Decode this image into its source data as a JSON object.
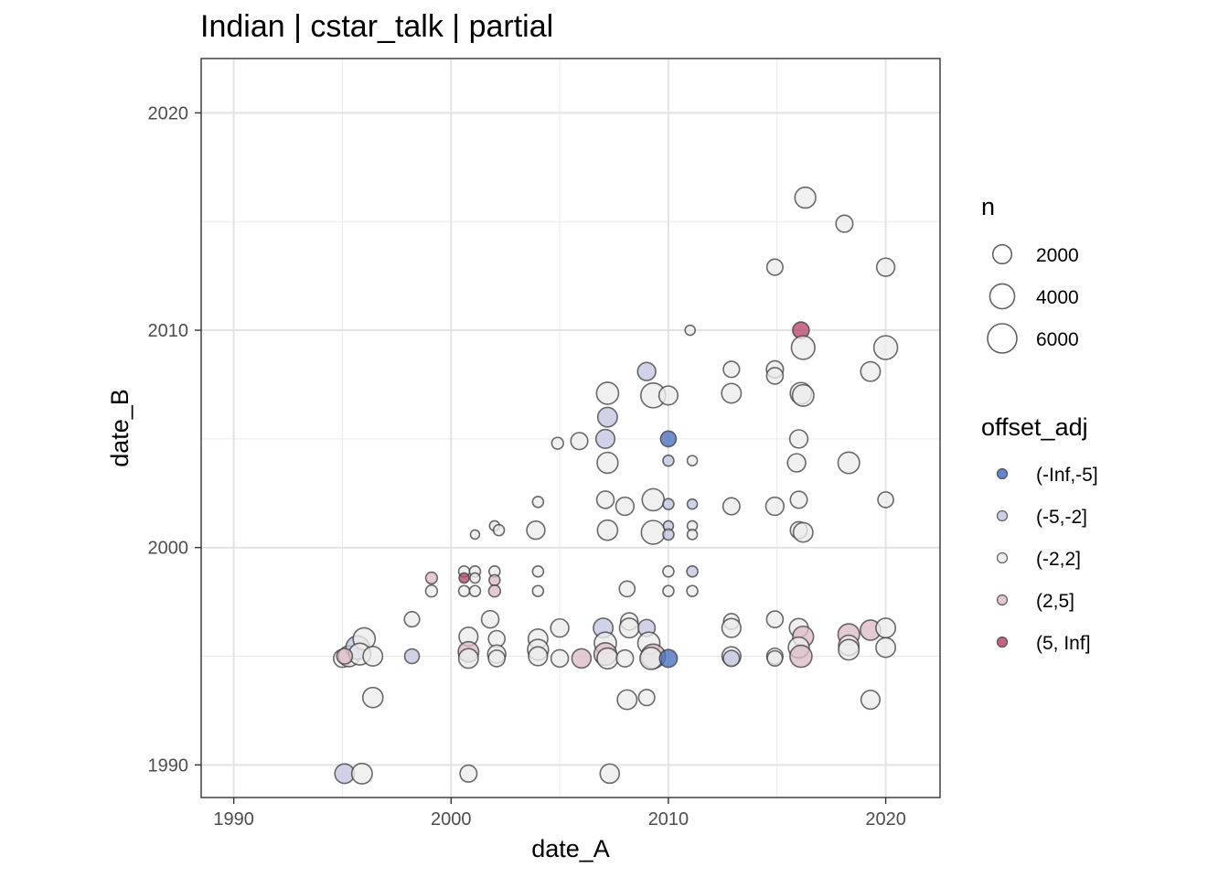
{
  "chart_data": {
    "type": "scatter",
    "title": "Indian | cstar_talk | partial",
    "xlabel": "date_A",
    "ylabel": "date_B",
    "xlim": [
      1988.5,
      2022.5
    ],
    "ylim": [
      1988.5,
      2022.5
    ],
    "x_ticks": [
      "1990",
      "2000",
      "2010",
      "2020"
    ],
    "y_ticks": [
      "1990",
      "2000",
      "2010",
      "2020"
    ],
    "grid": true,
    "size_legend": {
      "title": "n",
      "entries": [
        {
          "label": "2000",
          "value": 2000
        },
        {
          "label": "4000",
          "value": 4000
        },
        {
          "label": "6000",
          "value": 6000
        }
      ]
    },
    "color_legend": {
      "title": "offset_adj",
      "position": "right",
      "entries": [
        {
          "label": "(-Inf,-5]",
          "key": "neg_inf",
          "color": "#4a6fbf"
        },
        {
          "label": "(-5,-2]",
          "key": "neg",
          "color": "#c3c6e2"
        },
        {
          "label": "(-2,2]",
          "key": "zero",
          "color": "#ececec"
        },
        {
          "label": "(2,5]",
          "key": "pos",
          "color": "#ddbdc6"
        },
        {
          "label": "(5, Inf]",
          "key": "pos_inf",
          "color": "#b9476e"
        }
      ]
    },
    "points": [
      {
        "x": 1995.1,
        "y": 1989.6,
        "n": 2200,
        "g": "neg"
      },
      {
        "x": 1995.9,
        "y": 1989.6,
        "n": 2500,
        "g": "zero"
      },
      {
        "x": 1996.4,
        "y": 1993.1,
        "n": 2400,
        "g": "zero"
      },
      {
        "x": 1995.0,
        "y": 1994.9,
        "n": 1700,
        "g": "zero"
      },
      {
        "x": 1995.3,
        "y": 1995.0,
        "n": 2600,
        "g": "zero"
      },
      {
        "x": 1995.7,
        "y": 1995.4,
        "n": 3500,
        "g": "neg"
      },
      {
        "x": 1996.0,
        "y": 1995.8,
        "n": 3000,
        "g": "zero"
      },
      {
        "x": 1995.8,
        "y": 1995.1,
        "n": 2900,
        "g": "zero"
      },
      {
        "x": 1996.4,
        "y": 1995.0,
        "n": 2200,
        "g": "zero"
      },
      {
        "x": 1995.1,
        "y": 1995.0,
        "n": 1200,
        "g": "pos"
      },
      {
        "x": 1998.2,
        "y": 1996.7,
        "n": 1100,
        "g": "zero"
      },
      {
        "x": 1998.2,
        "y": 1995.0,
        "n": 1000,
        "g": "neg"
      },
      {
        "x": 1999.1,
        "y": 1998.0,
        "n": 500,
        "g": "zero"
      },
      {
        "x": 1999.1,
        "y": 1998.6,
        "n": 500,
        "g": "pos"
      },
      {
        "x": 2000.6,
        "y": 1998.9,
        "n": 400,
        "g": "zero"
      },
      {
        "x": 2000.6,
        "y": 1998.6,
        "n": 300,
        "g": "pos_inf"
      },
      {
        "x": 2000.6,
        "y": 1998.0,
        "n": 400,
        "g": "zero"
      },
      {
        "x": 2001.1,
        "y": 1998.9,
        "n": 400,
        "g": "zero"
      },
      {
        "x": 2001.1,
        "y": 1998.6,
        "n": 300,
        "g": "zero"
      },
      {
        "x": 2001.1,
        "y": 1998.0,
        "n": 400,
        "g": "zero"
      },
      {
        "x": 2001.1,
        "y": 2000.6,
        "n": 200,
        "g": "zero"
      },
      {
        "x": 2000.8,
        "y": 1989.6,
        "n": 1500,
        "g": "zero"
      },
      {
        "x": 2000.8,
        "y": 1995.9,
        "n": 2000,
        "g": "zero"
      },
      {
        "x": 2000.8,
        "y": 1995.2,
        "n": 2500,
        "g": "pos"
      },
      {
        "x": 2000.8,
        "y": 1994.9,
        "n": 2200,
        "g": "zero"
      },
      {
        "x": 2002.0,
        "y": 2001.0,
        "n": 300,
        "g": "zero"
      },
      {
        "x": 2002.2,
        "y": 2000.8,
        "n": 400,
        "g": "zero"
      },
      {
        "x": 2002.0,
        "y": 1998.9,
        "n": 400,
        "g": "zero"
      },
      {
        "x": 2002.0,
        "y": 1998.5,
        "n": 400,
        "g": "pos"
      },
      {
        "x": 2002.0,
        "y": 1998.0,
        "n": 500,
        "g": "pos"
      },
      {
        "x": 2001.8,
        "y": 1996.7,
        "n": 1600,
        "g": "zero"
      },
      {
        "x": 2002.1,
        "y": 1995.8,
        "n": 1400,
        "g": "zero"
      },
      {
        "x": 2002.1,
        "y": 1995.1,
        "n": 1800,
        "g": "zero"
      },
      {
        "x": 2002.1,
        "y": 1994.9,
        "n": 1400,
        "g": "zero"
      },
      {
        "x": 2003.9,
        "y": 2000.8,
        "n": 1800,
        "g": "zero"
      },
      {
        "x": 2004.0,
        "y": 2002.1,
        "n": 400,
        "g": "zero"
      },
      {
        "x": 2004.0,
        "y": 1998.9,
        "n": 400,
        "g": "zero"
      },
      {
        "x": 2004.0,
        "y": 1998.0,
        "n": 400,
        "g": "zero"
      },
      {
        "x": 2004.0,
        "y": 1995.8,
        "n": 2200,
        "g": "zero"
      },
      {
        "x": 2004.0,
        "y": 1995.3,
        "n": 2600,
        "g": "zero"
      },
      {
        "x": 2004.0,
        "y": 1995.0,
        "n": 2000,
        "g": "zero"
      },
      {
        "x": 2004.9,
        "y": 2004.8,
        "n": 500,
        "g": "zero"
      },
      {
        "x": 2005.0,
        "y": 1996.3,
        "n": 1800,
        "g": "zero"
      },
      {
        "x": 2005.0,
        "y": 1994.9,
        "n": 1600,
        "g": "zero"
      },
      {
        "x": 2005.9,
        "y": 2004.9,
        "n": 1500,
        "g": "zero"
      },
      {
        "x": 2006.0,
        "y": 1994.9,
        "n": 2100,
        "g": "pos"
      },
      {
        "x": 2007.2,
        "y": 2007.1,
        "n": 3000,
        "g": "zero"
      },
      {
        "x": 2007.2,
        "y": 2006.0,
        "n": 2200,
        "g": "neg"
      },
      {
        "x": 2007.1,
        "y": 2005.0,
        "n": 2000,
        "g": "neg"
      },
      {
        "x": 2007.2,
        "y": 2003.9,
        "n": 2600,
        "g": "zero"
      },
      {
        "x": 2007.1,
        "y": 2002.2,
        "n": 1600,
        "g": "zero"
      },
      {
        "x": 2007.2,
        "y": 2000.8,
        "n": 2400,
        "g": "zero"
      },
      {
        "x": 2007.0,
        "y": 1996.3,
        "n": 2200,
        "g": "neg"
      },
      {
        "x": 2007.1,
        "y": 1995.6,
        "n": 3000,
        "g": "zero"
      },
      {
        "x": 2007.1,
        "y": 1995.1,
        "n": 3200,
        "g": "pos"
      },
      {
        "x": 2007.2,
        "y": 1994.9,
        "n": 2600,
        "g": "zero"
      },
      {
        "x": 2007.3,
        "y": 1989.6,
        "n": 2100,
        "g": "zero"
      },
      {
        "x": 2008.0,
        "y": 2001.9,
        "n": 1800,
        "g": "zero"
      },
      {
        "x": 2008.1,
        "y": 1998.1,
        "n": 1200,
        "g": "zero"
      },
      {
        "x": 2008.2,
        "y": 1996.6,
        "n": 1600,
        "g": "zero"
      },
      {
        "x": 2008.2,
        "y": 1996.3,
        "n": 2200,
        "g": "zero"
      },
      {
        "x": 2008.0,
        "y": 1994.9,
        "n": 1500,
        "g": "zero"
      },
      {
        "x": 2008.1,
        "y": 1993.0,
        "n": 2200,
        "g": "zero"
      },
      {
        "x": 2009.0,
        "y": 2008.1,
        "n": 1800,
        "g": "neg"
      },
      {
        "x": 2009.3,
        "y": 2007.0,
        "n": 4000,
        "g": "zero"
      },
      {
        "x": 2009.3,
        "y": 2002.2,
        "n": 3000,
        "g": "zero"
      },
      {
        "x": 2009.3,
        "y": 2000.7,
        "n": 3600,
        "g": "zero"
      },
      {
        "x": 2009.0,
        "y": 1996.3,
        "n": 1500,
        "g": "neg"
      },
      {
        "x": 2009.1,
        "y": 1995.6,
        "n": 3000,
        "g": "zero"
      },
      {
        "x": 2009.3,
        "y": 1995.0,
        "n": 3800,
        "g": "pos"
      },
      {
        "x": 2009.2,
        "y": 1994.9,
        "n": 3000,
        "g": "zero"
      },
      {
        "x": 2009.0,
        "y": 1993.1,
        "n": 1300,
        "g": "zero"
      },
      {
        "x": 2010.0,
        "y": 2007.0,
        "n": 2000,
        "g": "zero"
      },
      {
        "x": 2010.0,
        "y": 2005.0,
        "n": 1200,
        "g": "neg_inf"
      },
      {
        "x": 2010.0,
        "y": 2004.0,
        "n": 400,
        "g": "neg"
      },
      {
        "x": 2010.0,
        "y": 2002.0,
        "n": 400,
        "g": "neg"
      },
      {
        "x": 2010.0,
        "y": 2001.0,
        "n": 300,
        "g": "neg"
      },
      {
        "x": 2010.0,
        "y": 2000.6,
        "n": 400,
        "g": "neg"
      },
      {
        "x": 2010.0,
        "y": 1998.9,
        "n": 400,
        "g": "zero"
      },
      {
        "x": 2010.0,
        "y": 1998.0,
        "n": 400,
        "g": "zero"
      },
      {
        "x": 2010.0,
        "y": 1994.9,
        "n": 1700,
        "g": "neg_inf"
      },
      {
        "x": 2011.0,
        "y": 2010.0,
        "n": 300,
        "g": "zero"
      },
      {
        "x": 2011.1,
        "y": 2004.0,
        "n": 300,
        "g": "zero"
      },
      {
        "x": 2011.1,
        "y": 2002.0,
        "n": 300,
        "g": "neg"
      },
      {
        "x": 2011.1,
        "y": 2001.0,
        "n": 300,
        "g": "zero"
      },
      {
        "x": 2011.1,
        "y": 2000.6,
        "n": 300,
        "g": "zero"
      },
      {
        "x": 2011.1,
        "y": 1998.9,
        "n": 400,
        "g": "neg"
      },
      {
        "x": 2011.1,
        "y": 1998.0,
        "n": 400,
        "g": "zero"
      },
      {
        "x": 2012.9,
        "y": 2008.2,
        "n": 1300,
        "g": "zero"
      },
      {
        "x": 2012.9,
        "y": 2007.1,
        "n": 2200,
        "g": "zero"
      },
      {
        "x": 2012.9,
        "y": 2001.9,
        "n": 1500,
        "g": "zero"
      },
      {
        "x": 2012.9,
        "y": 1996.6,
        "n": 1200,
        "g": "zero"
      },
      {
        "x": 2012.9,
        "y": 1996.3,
        "n": 2000,
        "g": "zero"
      },
      {
        "x": 2012.9,
        "y": 1995.0,
        "n": 2000,
        "g": "zero"
      },
      {
        "x": 2012.9,
        "y": 1994.9,
        "n": 1300,
        "g": "neg"
      },
      {
        "x": 2014.9,
        "y": 2012.9,
        "n": 1300,
        "g": "zero"
      },
      {
        "x": 2014.9,
        "y": 2008.2,
        "n": 1500,
        "g": "zero"
      },
      {
        "x": 2014.9,
        "y": 2007.9,
        "n": 1400,
        "g": "zero"
      },
      {
        "x": 2014.9,
        "y": 2001.9,
        "n": 1800,
        "g": "zero"
      },
      {
        "x": 2014.9,
        "y": 1996.7,
        "n": 1400,
        "g": "zero"
      },
      {
        "x": 2014.9,
        "y": 1995.0,
        "n": 1300,
        "g": "zero"
      },
      {
        "x": 2014.9,
        "y": 1994.9,
        "n": 1100,
        "g": "zero"
      },
      {
        "x": 2016.3,
        "y": 2016.1,
        "n": 2600,
        "g": "zero"
      },
      {
        "x": 2016.1,
        "y": 2010.0,
        "n": 1400,
        "g": "pos_inf"
      },
      {
        "x": 2016.2,
        "y": 2009.2,
        "n": 3500,
        "g": "zero"
      },
      {
        "x": 2016.1,
        "y": 2007.1,
        "n": 2800,
        "g": "zero"
      },
      {
        "x": 2016.2,
        "y": 2007.0,
        "n": 2800,
        "g": "zero"
      },
      {
        "x": 2016.0,
        "y": 2005.0,
        "n": 1800,
        "g": "zero"
      },
      {
        "x": 2015.9,
        "y": 2003.9,
        "n": 1800,
        "g": "zero"
      },
      {
        "x": 2016.0,
        "y": 2002.2,
        "n": 1500,
        "g": "zero"
      },
      {
        "x": 2016.0,
        "y": 2000.8,
        "n": 1500,
        "g": "zero"
      },
      {
        "x": 2016.2,
        "y": 2000.7,
        "n": 2200,
        "g": "zero"
      },
      {
        "x": 2016.0,
        "y": 1996.3,
        "n": 2000,
        "g": "zero"
      },
      {
        "x": 2016.2,
        "y": 1995.9,
        "n": 2600,
        "g": "pos"
      },
      {
        "x": 2016.0,
        "y": 1995.4,
        "n": 2600,
        "g": "zero"
      },
      {
        "x": 2016.1,
        "y": 1995.0,
        "n": 3000,
        "g": "pos"
      },
      {
        "x": 2018.1,
        "y": 2014.9,
        "n": 1500,
        "g": "zero"
      },
      {
        "x": 2018.3,
        "y": 2003.9,
        "n": 2800,
        "g": "zero"
      },
      {
        "x": 2018.3,
        "y": 1996.0,
        "n": 2800,
        "g": "pos"
      },
      {
        "x": 2018.3,
        "y": 1995.5,
        "n": 2400,
        "g": "zero"
      },
      {
        "x": 2018.3,
        "y": 1995.3,
        "n": 2500,
        "g": "zero"
      },
      {
        "x": 2019.3,
        "y": 2008.1,
        "n": 2200,
        "g": "zero"
      },
      {
        "x": 2019.3,
        "y": 1996.2,
        "n": 2400,
        "g": "pos"
      },
      {
        "x": 2019.3,
        "y": 1993.0,
        "n": 2000,
        "g": "zero"
      },
      {
        "x": 2020.0,
        "y": 2012.9,
        "n": 1800,
        "g": "zero"
      },
      {
        "x": 2020.0,
        "y": 2009.2,
        "n": 3600,
        "g": "zero"
      },
      {
        "x": 2020.0,
        "y": 2002.2,
        "n": 1200,
        "g": "zero"
      },
      {
        "x": 2020.0,
        "y": 1996.3,
        "n": 2200,
        "g": "zero"
      },
      {
        "x": 2020.0,
        "y": 1995.4,
        "n": 2200,
        "g": "zero"
      }
    ]
  }
}
